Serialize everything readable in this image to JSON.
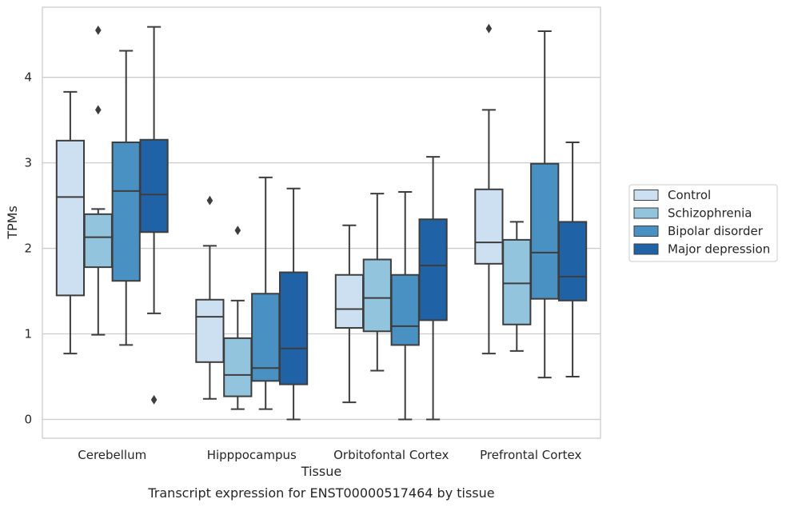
{
  "chart_data": {
    "type": "box",
    "title": "",
    "caption": "Transcript expression for ENST00000517464 by tissue",
    "xlabel": "Tissue",
    "ylabel": "TPMs",
    "ylim": [
      -0.22,
      4.82
    ],
    "yticks": [
      0,
      1,
      2,
      3,
      4
    ],
    "grid": "horizontal",
    "legend_position": "right",
    "categories": [
      "Cerebellum",
      "Hipppocampus",
      "Orbitofontal Cortex",
      "Prefrontal Cortex"
    ],
    "series": [
      {
        "name": "Control",
        "color": "#cde0f1",
        "boxes": [
          {
            "whislo": 0.77,
            "q1": 1.45,
            "med": 2.6,
            "q3": 3.26,
            "whishi": 3.83,
            "fliers": []
          },
          {
            "whislo": 0.24,
            "q1": 0.67,
            "med": 1.2,
            "q3": 1.4,
            "whishi": 2.03,
            "fliers": [
              2.56
            ]
          },
          {
            "whislo": 0.2,
            "q1": 1.07,
            "med": 1.29,
            "q3": 1.69,
            "whishi": 2.27,
            "fliers": []
          },
          {
            "whislo": 0.77,
            "q1": 1.82,
            "med": 2.07,
            "q3": 2.69,
            "whishi": 3.62,
            "fliers": [
              4.57
            ]
          }
        ]
      },
      {
        "name": "Schizophrenia",
        "color": "#93c4de",
        "boxes": [
          {
            "whislo": 0.99,
            "q1": 1.78,
            "med": 2.13,
            "q3": 2.4,
            "whishi": 2.46,
            "fliers": [
              3.62,
              4.55
            ]
          },
          {
            "whislo": 0.12,
            "q1": 0.27,
            "med": 0.52,
            "q3": 0.95,
            "whishi": 1.39,
            "fliers": [
              2.21
            ]
          },
          {
            "whislo": 0.57,
            "q1": 1.03,
            "med": 1.42,
            "q3": 1.87,
            "whishi": 2.64,
            "fliers": []
          },
          {
            "whislo": 0.8,
            "q1": 1.11,
            "med": 1.59,
            "q3": 2.1,
            "whishi": 2.31,
            "fliers": []
          }
        ]
      },
      {
        "name": "Bipolar disorder",
        "color": "#4a91c3",
        "boxes": [
          {
            "whislo": 0.87,
            "q1": 1.62,
            "med": 2.67,
            "q3": 3.24,
            "whishi": 4.31,
            "fliers": []
          },
          {
            "whislo": 0.12,
            "q1": 0.45,
            "med": 0.6,
            "q3": 1.47,
            "whishi": 2.83,
            "fliers": []
          },
          {
            "whislo": 0.0,
            "q1": 0.87,
            "med": 1.09,
            "q3": 1.69,
            "whishi": 2.66,
            "fliers": []
          },
          {
            "whislo": 0.49,
            "q1": 1.41,
            "med": 1.95,
            "q3": 2.99,
            "whishi": 4.54,
            "fliers": []
          }
        ]
      },
      {
        "name": "Major depression",
        "color": "#1f63a6",
        "boxes": [
          {
            "whislo": 1.24,
            "q1": 2.19,
            "med": 2.63,
            "q3": 3.27,
            "whishi": 4.59,
            "fliers": [
              0.23
            ]
          },
          {
            "whislo": 0.0,
            "q1": 0.41,
            "med": 0.83,
            "q3": 1.72,
            "whishi": 2.7,
            "fliers": []
          },
          {
            "whislo": 0.0,
            "q1": 1.16,
            "med": 1.8,
            "q3": 2.34,
            "whishi": 3.07,
            "fliers": []
          },
          {
            "whislo": 0.5,
            "q1": 1.39,
            "med": 1.67,
            "q3": 2.31,
            "whishi": 3.24,
            "fliers": []
          }
        ]
      }
    ]
  }
}
